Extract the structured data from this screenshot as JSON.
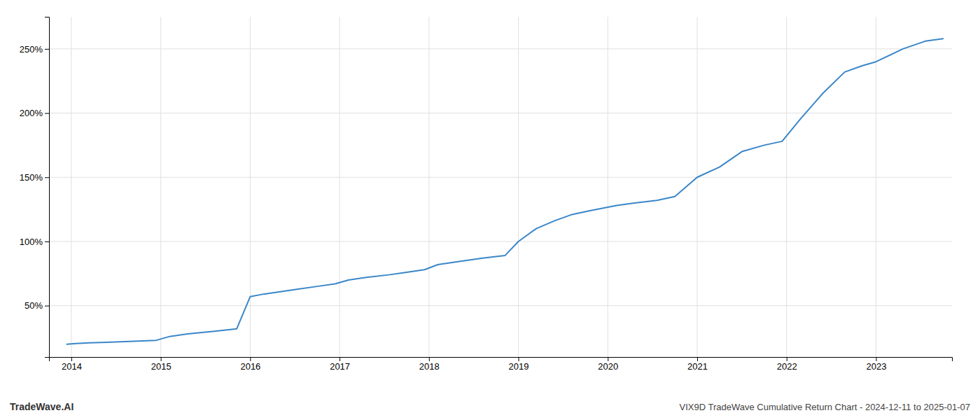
{
  "chart_data": {
    "type": "line",
    "title": "VIX9D TradeWave Cumulative Return Chart - 2024-12-11 to 2025-01-07",
    "annotations": [
      "TradeWave.AI"
    ],
    "color": "#3a86c8",
    "grid": true,
    "x": [
      2013.95,
      2014.05,
      2014.2,
      2014.4,
      2014.6,
      2014.8,
      2014.95,
      2015.1,
      2015.3,
      2015.6,
      2015.85,
      2016.0,
      2016.15,
      2016.35,
      2016.55,
      2016.75,
      2016.95,
      2017.1,
      2017.3,
      2017.55,
      2017.75,
      2017.95,
      2018.1,
      2018.3,
      2018.6,
      2018.85,
      2019.0,
      2019.2,
      2019.4,
      2019.6,
      2019.8,
      2019.95,
      2020.1,
      2020.3,
      2020.55,
      2020.75,
      2021.0,
      2021.25,
      2021.5,
      2021.75,
      2021.95,
      2022.15,
      2022.4,
      2022.65,
      2022.85,
      2023.0,
      2023.3,
      2023.55,
      2023.75
    ],
    "values": [
      20,
      20.5,
      21,
      21.5,
      22,
      22.5,
      23,
      26,
      28,
      30,
      32,
      57,
      59,
      61,
      63,
      65,
      67,
      70,
      72,
      74,
      76,
      78,
      82,
      84,
      87,
      89,
      100,
      110,
      116,
      121,
      124,
      126,
      128,
      130,
      132,
      135,
      150,
      158,
      170,
      175,
      178,
      195,
      215,
      232,
      237,
      240,
      250,
      256,
      258
    ],
    "xlim": [
      2013.75,
      2023.85
    ],
    "xticks": [
      2014,
      2015,
      2016,
      2017,
      2018,
      2019,
      2020,
      2021,
      2022,
      2023
    ],
    "ylim": [
      10,
      275
    ],
    "yticks": [
      {
        "value": 50,
        "label": "50%"
      },
      {
        "value": 100,
        "label": "100%"
      },
      {
        "value": 150,
        "label": "150%"
      },
      {
        "value": 200,
        "label": "200%"
      },
      {
        "value": 250,
        "label": "250%"
      }
    ]
  }
}
